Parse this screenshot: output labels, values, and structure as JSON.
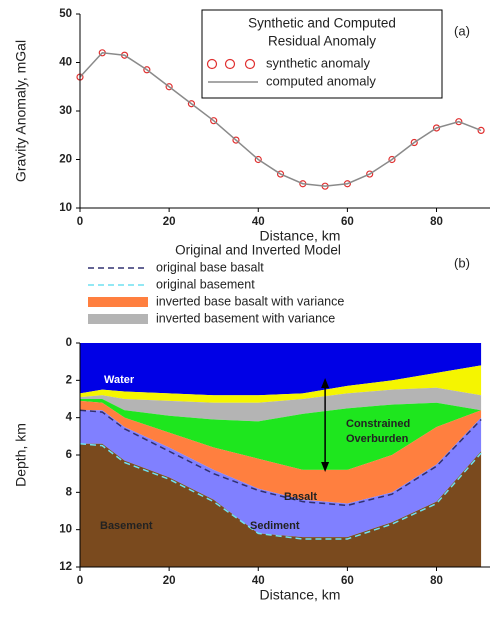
{
  "chart_data": [
    {
      "type": "line",
      "panel": "(a)",
      "title_lines": [
        "Synthetic and Computed",
        "Residual Anomaly"
      ],
      "x_label": "Distance, km",
      "y_label": "Gravity Anomaly, mGal",
      "x": [
        0,
        5,
        10,
        15,
        20,
        25,
        30,
        35,
        40,
        45,
        50,
        55,
        60,
        65,
        70,
        75,
        80,
        85,
        90
      ],
      "series": [
        {
          "name": "synthetic anomaly",
          "color": "#e03030",
          "marker": "circle",
          "values": [
            37,
            42,
            41.5,
            38.5,
            35,
            31.5,
            28,
            24,
            20,
            17,
            15,
            14.5,
            15,
            17,
            20,
            23.5,
            26.5,
            27.8,
            26
          ]
        },
        {
          "name": "computed anomaly",
          "color": "#8a8a8a",
          "marker": "line",
          "values": [
            37,
            42,
            41.5,
            38.5,
            35,
            31.5,
            28,
            24,
            20,
            17,
            15,
            14.5,
            15,
            17,
            20,
            23.5,
            26.5,
            27.8,
            26
          ]
        }
      ],
      "xlim": [
        0,
        92
      ],
      "xticks": [
        0,
        20,
        40,
        60,
        80
      ],
      "ylim": [
        10,
        50
      ],
      "yticks": [
        10,
        20,
        30,
        40,
        50
      ]
    },
    {
      "type": "section",
      "panel": "(b)",
      "title": "Original and Inverted Model",
      "x_label": "Distance, km",
      "y_label": "Depth, km",
      "x": [
        0,
        5,
        10,
        20,
        30,
        40,
        50,
        60,
        70,
        80,
        90
      ],
      "layers": [
        {
          "color": "#0000e6",
          "bottom": [
            2.7,
            2.5,
            2.6,
            2.7,
            2.8,
            2.8,
            2.7,
            2.3,
            2.0,
            1.6,
            1.2
          ]
        },
        {
          "color": "#f5f500",
          "bottom": [
            2.9,
            2.8,
            3.0,
            3.1,
            3.2,
            3.2,
            3.0,
            2.7,
            2.5,
            2.4,
            2.8
          ]
        },
        {
          "color": "#b4b4b4",
          "bottom": [
            3.0,
            3.0,
            3.6,
            3.9,
            4.1,
            4.2,
            3.8,
            3.5,
            3.3,
            3.2,
            3.6
          ]
        },
        {
          "color": "#1ee61e",
          "bottom": [
            3.1,
            3.2,
            4.0,
            4.8,
            5.6,
            6.2,
            6.8,
            6.8,
            6.0,
            4.5,
            3.6
          ]
        },
        {
          "color": "#ff7f3f",
          "bottom": [
            3.6,
            3.6,
            4.5,
            5.6,
            6.8,
            7.8,
            8.4,
            8.6,
            8.0,
            6.5,
            4.0
          ]
        },
        {
          "color": "#8080ff",
          "bottom": [
            5.4,
            5.4,
            6.3,
            7.2,
            8.4,
            10.2,
            10.4,
            10.4,
            9.6,
            8.5,
            5.8
          ]
        },
        {
          "color": "#7a4a1e"
        }
      ],
      "series": [
        {
          "name": "original base basalt",
          "color": "#303070",
          "style": "dashed",
          "values": [
            3.6,
            3.7,
            4.6,
            5.8,
            7.0,
            7.9,
            8.5,
            8.7,
            8.1,
            6.6,
            4.1
          ]
        },
        {
          "name": "original basement",
          "color": "#6fe0f0",
          "style": "dashed",
          "values": [
            5.4,
            5.5,
            6.4,
            7.3,
            8.5,
            10.2,
            10.5,
            10.5,
            9.7,
            8.6,
            5.9
          ]
        },
        {
          "name": "inverted base basalt with variance",
          "color": "#ff7f3f",
          "style": "band"
        },
        {
          "name": "inverted basement with variance",
          "color": "#b4b4b4",
          "style": "band"
        }
      ],
      "annotations": [
        "Water",
        "Constrained",
        "Overburden",
        "Basalt",
        "Sediment",
        "Basement"
      ],
      "xlim": [
        0,
        92
      ],
      "xticks": [
        0,
        20,
        40,
        60,
        80
      ],
      "ylim": [
        0,
        12
      ],
      "yticks": [
        0,
        2,
        4,
        6,
        8,
        10,
        12
      ]
    }
  ]
}
